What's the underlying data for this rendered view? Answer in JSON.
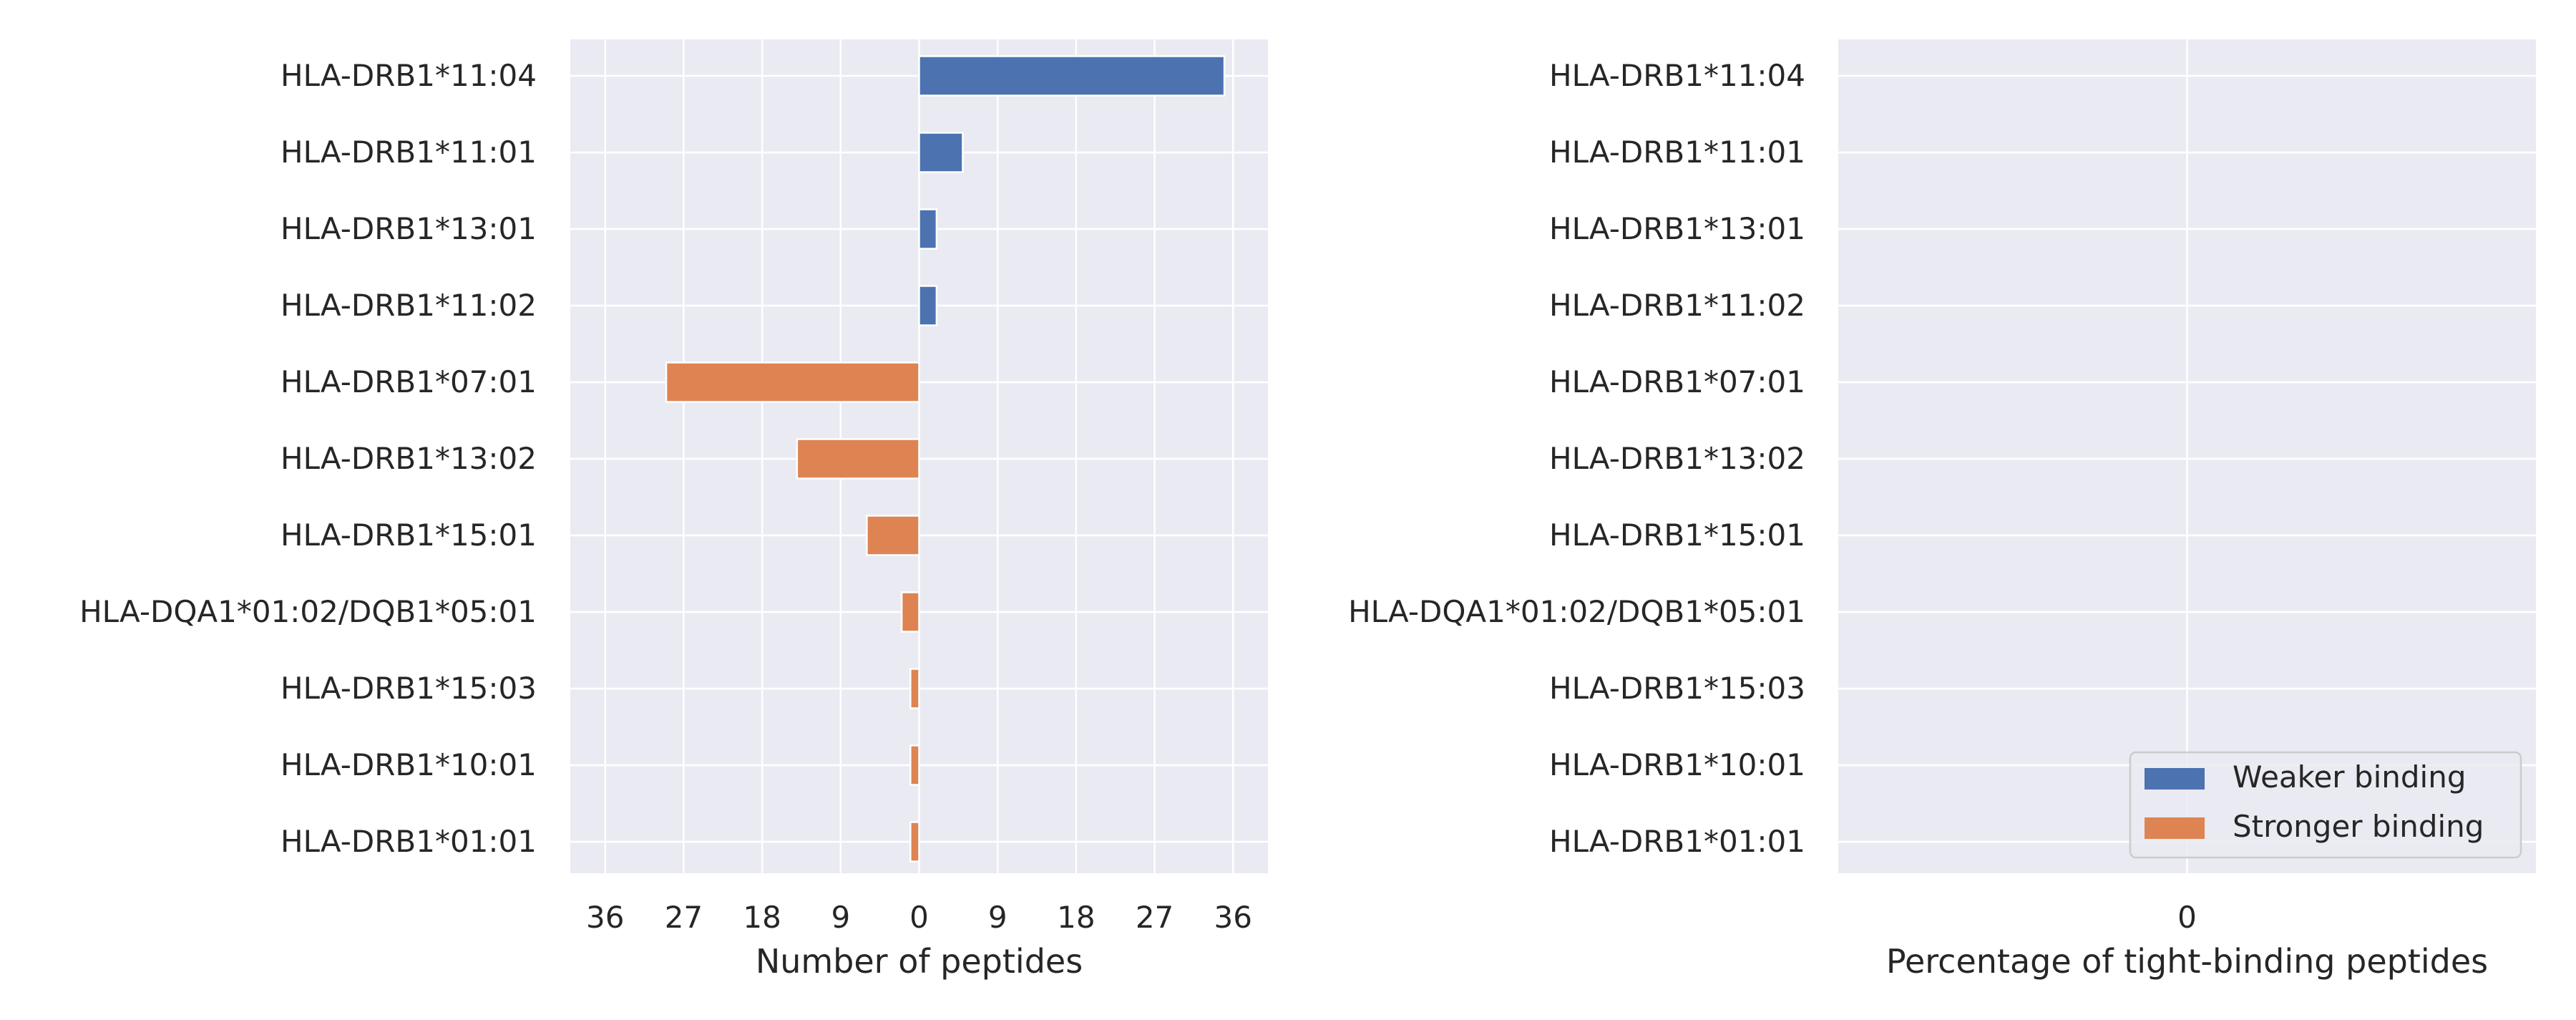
{
  "chart_data": [
    {
      "type": "bar",
      "orientation": "horizontal",
      "categories": [
        "HLA-DRB1*11:04",
        "HLA-DRB1*11:01",
        "HLA-DRB1*13:01",
        "HLA-DRB1*11:02",
        "HLA-DRB1*07:01",
        "HLA-DRB1*13:02",
        "HLA-DRB1*15:01",
        "HLA-DQA1*01:02/DQB1*05:01",
        "HLA-DRB1*15:03",
        "HLA-DRB1*10:01",
        "HLA-DRB1*01:01"
      ],
      "series": [
        {
          "name": "Weaker binding",
          "color": "#4c72b0",
          "values": [
            35,
            5,
            2,
            2,
            0,
            0,
            0,
            0,
            0,
            0,
            0
          ]
        },
        {
          "name": "Stronger binding",
          "color": "#dd8452",
          "values": [
            0,
            0,
            0,
            0,
            29,
            14,
            6,
            2,
            1,
            1,
            1
          ]
        }
      ],
      "stacking": "diverging: Stronger binding drawn to the left of 0, Weaker binding to the right",
      "xlabel": "Number of peptides",
      "xlim": [
        -40,
        40
      ],
      "xticks": [
        -36,
        -27,
        -18,
        -9,
        0,
        9,
        18,
        27,
        36
      ],
      "xtick_labels": [
        "36",
        "27",
        "18",
        "9",
        "0",
        "9",
        "18",
        "27",
        "36"
      ],
      "grid": true,
      "background": "#eaeaf2",
      "grid_color": "#ffffff"
    },
    {
      "type": "bar",
      "orientation": "horizontal",
      "categories": [
        "HLA-DRB1*11:04",
        "HLA-DRB1*11:01",
        "HLA-DRB1*13:01",
        "HLA-DRB1*11:02",
        "HLA-DRB1*07:01",
        "HLA-DRB1*13:02",
        "HLA-DRB1*15:01",
        "HLA-DQA1*01:02/DQB1*05:01",
        "HLA-DRB1*15:03",
        "HLA-DRB1*10:01",
        "HLA-DRB1*01:01"
      ],
      "series": [
        {
          "name": "Weaker binding",
          "color": "#4c72b0",
          "values": [
            0,
            0,
            0,
            0,
            0,
            0,
            0,
            0,
            0,
            0,
            0
          ]
        },
        {
          "name": "Stronger binding",
          "color": "#dd8452",
          "values": [
            0,
            0,
            0,
            0,
            0,
            0,
            0,
            0,
            0,
            0,
            0
          ]
        }
      ],
      "xlabel": "Percentage of tight-binding peptides",
      "xlim": [
        -1,
        1
      ],
      "xticks": [
        0
      ],
      "xtick_labels": [
        "0"
      ],
      "grid": true,
      "background": "#eaeaf2",
      "grid_color": "#ffffff",
      "legend": {
        "placement": "lower-right",
        "entries": [
          {
            "label": "Weaker binding",
            "color": "#4c72b0"
          },
          {
            "label": "Stronger binding",
            "color": "#dd8452"
          }
        ]
      }
    }
  ]
}
